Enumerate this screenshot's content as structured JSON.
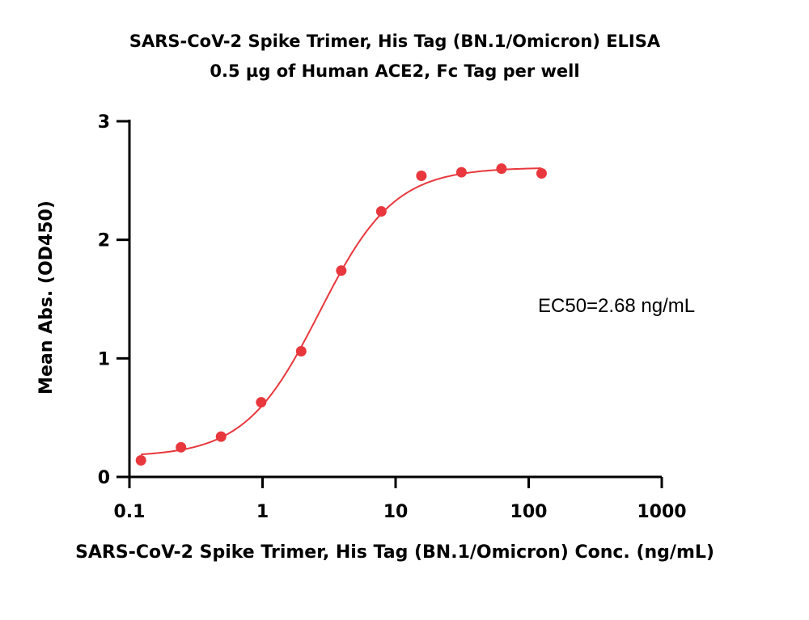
{
  "chart_data": {
    "type": "scatter",
    "title": "SARS-CoV-2 Spike Trimer, His Tag (BN.1/Omicron) ELISA",
    "subtitle": "0.5 µg of Human ACE2, Fc Tag per well",
    "xlabel": "SARS-CoV-2 Spike Trimer, His Tag (BN.1/Omicron) Conc. (ng/mL)",
    "ylabel": "Mean Abs. (OD450)",
    "x_scale": "log",
    "xlim": [
      0.1,
      1000
    ],
    "ylim": [
      0,
      3
    ],
    "x_ticks": [
      "0.1",
      "1",
      "10",
      "100",
      "1000"
    ],
    "y_ticks": [
      "0",
      "1",
      "2",
      "3"
    ],
    "grid": false,
    "color": "#e8383d",
    "annotation": "EC50=2.68 ng/mL",
    "series": [
      {
        "x": [
          0.122,
          0.244,
          0.488,
          0.977,
          1.953,
          3.906,
          7.813,
          15.625,
          31.25,
          62.5,
          125
        ],
        "y": [
          0.14,
          0.25,
          0.34,
          0.63,
          1.06,
          1.74,
          2.24,
          2.54,
          2.57,
          2.6,
          2.56
        ]
      }
    ],
    "fit": {
      "bottom": 0.17,
      "top": 2.61,
      "ec50": 2.68,
      "hill": 1.55
    }
  }
}
